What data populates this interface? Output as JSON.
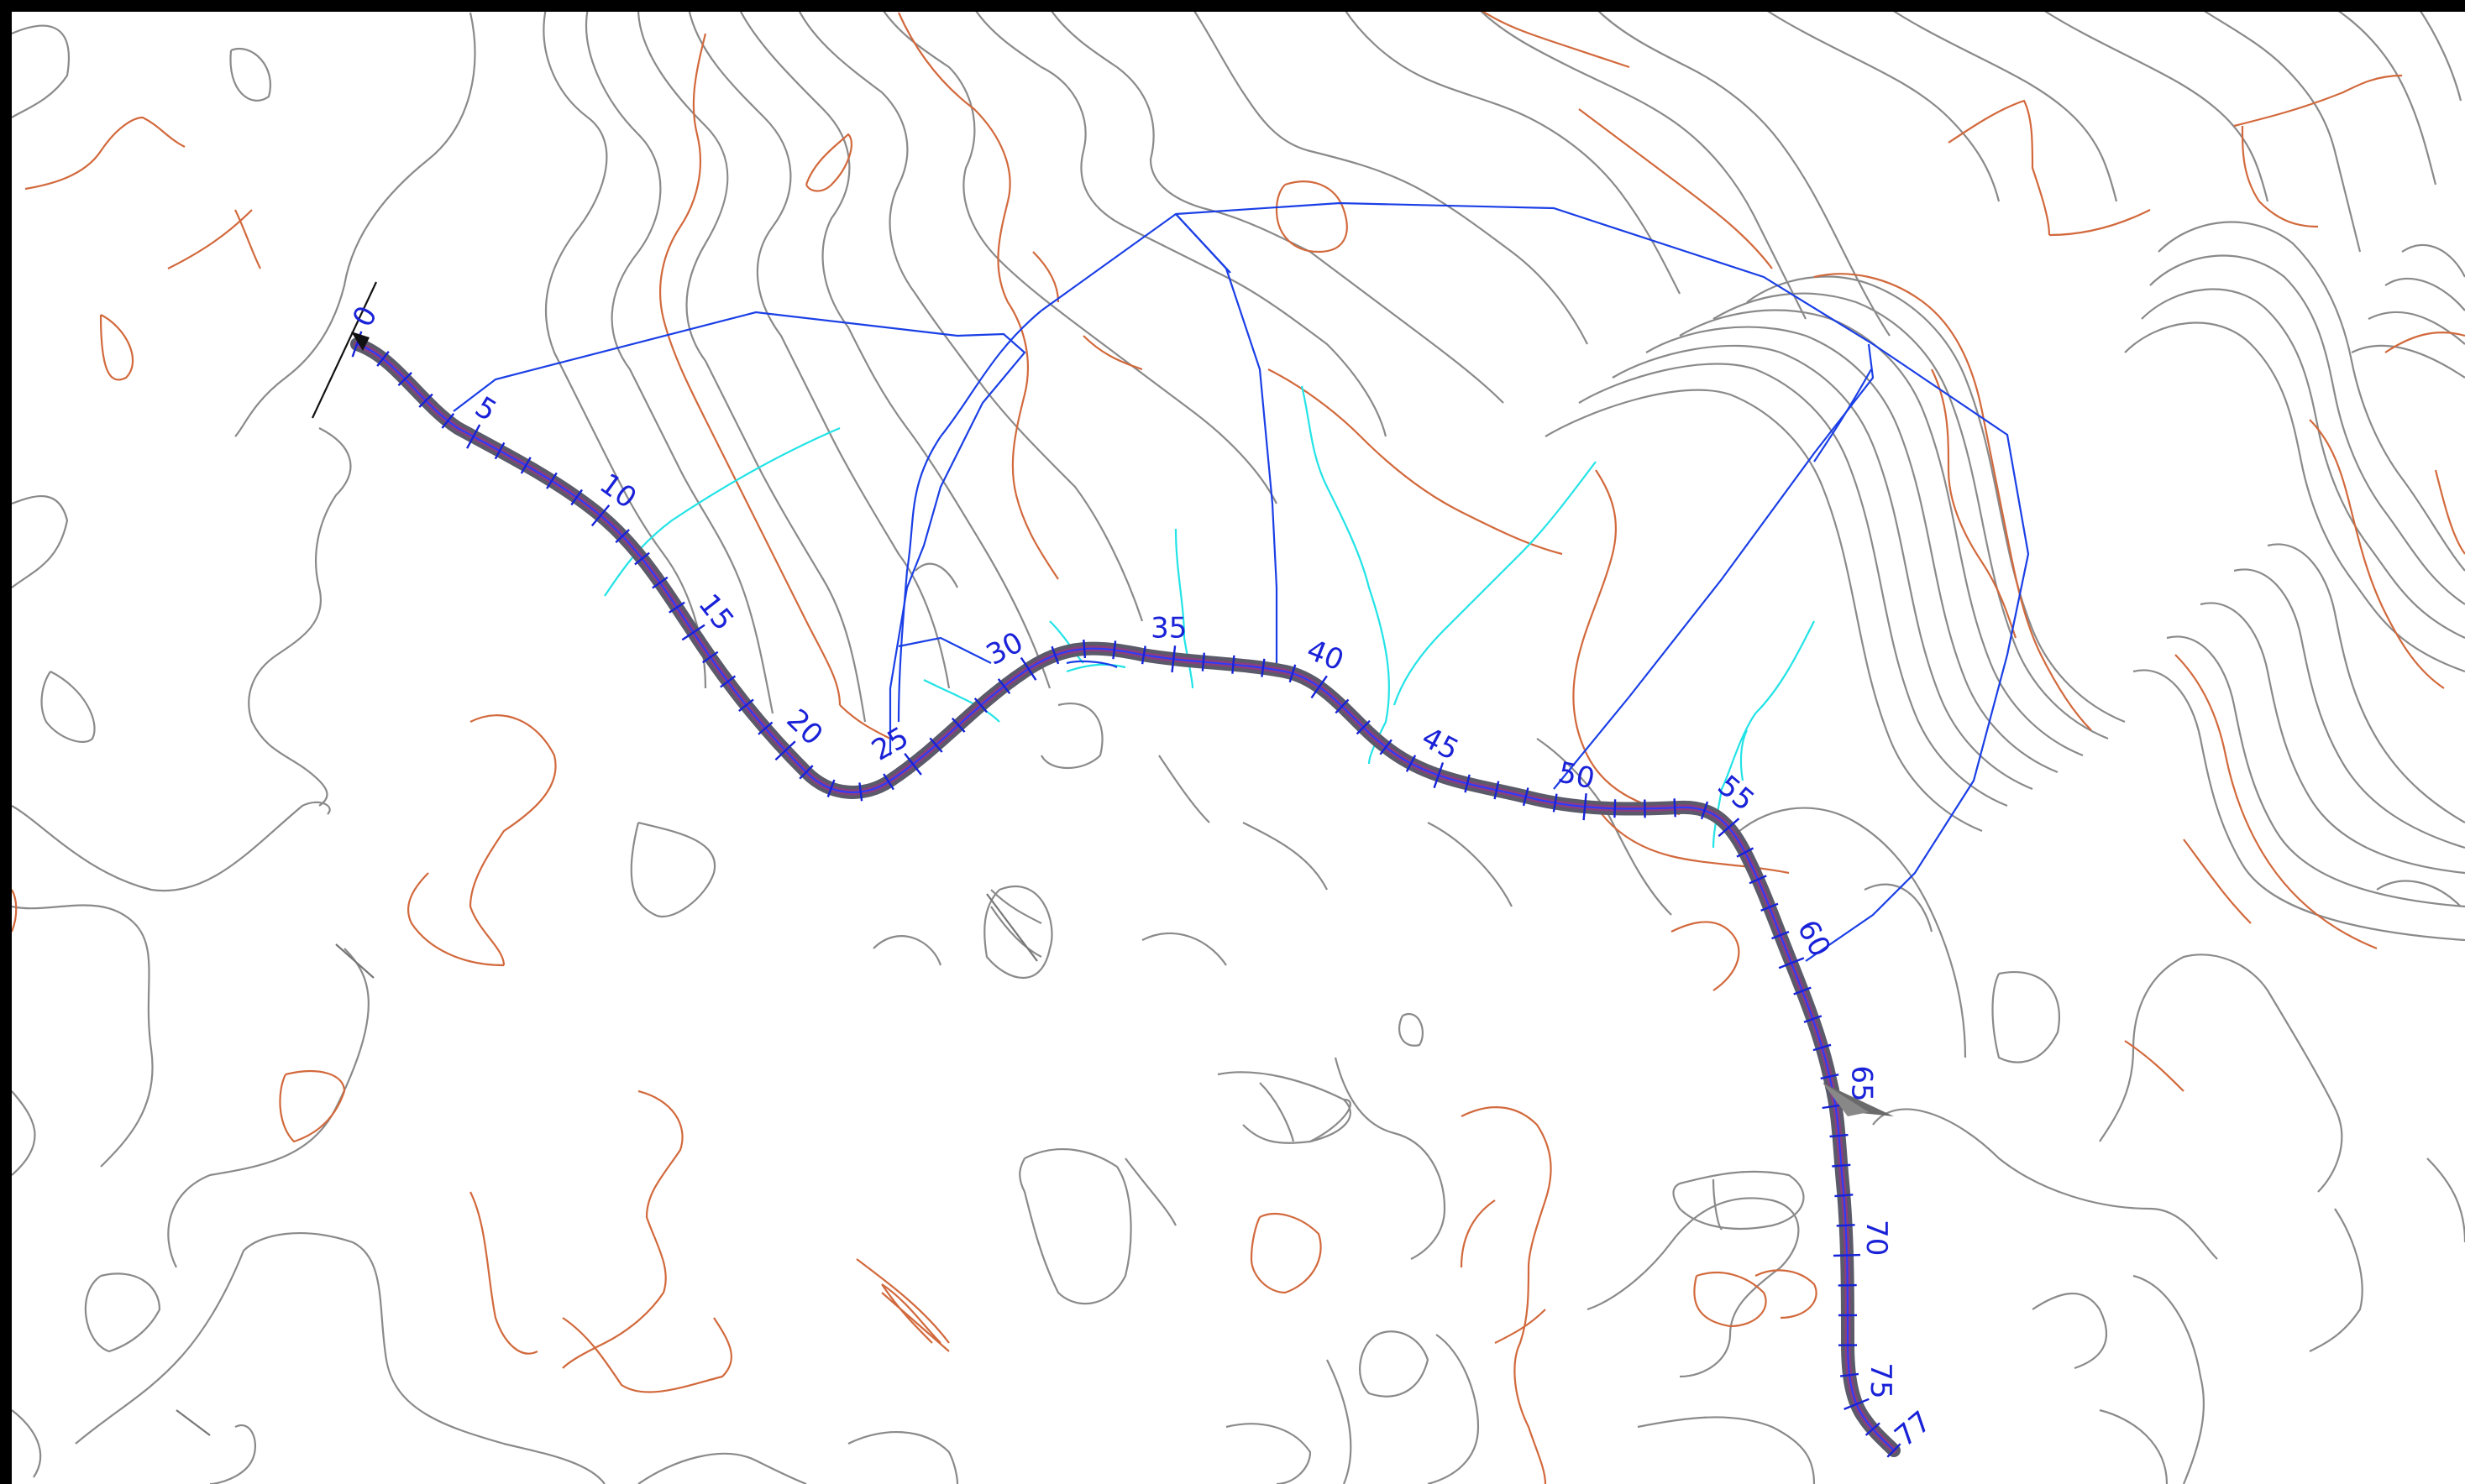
{
  "map": {
    "stations": [
      {
        "label": "0",
        "t": 0.0,
        "angle": -62
      },
      {
        "label": "5",
        "t": 0.064,
        "angle": 32
      },
      {
        "label": "10",
        "t": 0.129,
        "angle": 36
      },
      {
        "label": "15",
        "t": 0.193,
        "angle": 52
      },
      {
        "label": "20",
        "t": 0.258,
        "angle": 44
      },
      {
        "label": "25",
        "t": 0.322,
        "angle": -30
      },
      {
        "label": "30",
        "t": 0.386,
        "angle": -28
      },
      {
        "label": "35",
        "t": 0.451,
        "angle": 0
      },
      {
        "label": "40",
        "t": 0.515,
        "angle": 22
      },
      {
        "label": "45",
        "t": 0.58,
        "angle": 28
      },
      {
        "label": "50",
        "t": 0.644,
        "angle": 12
      },
      {
        "label": "55",
        "t": 0.708,
        "angle": 40
      },
      {
        "label": "60",
        "t": 0.773,
        "angle": 62
      },
      {
        "label": "65",
        "t": 0.837,
        "angle": 90
      },
      {
        "label": "70",
        "t": 0.902,
        "angle": 90
      },
      {
        "label": "75",
        "t": 0.966,
        "angle": 90
      },
      {
        "label": "77",
        "t": 1.0,
        "angle": -40
      }
    ],
    "colors": {
      "contour_minor": "#8a8a8a",
      "contour_major": "#d2693c",
      "stream": "#22e3e6",
      "catchment": "#1a3fe6",
      "route": "#8a3e7e",
      "station_text": "#1a22d8"
    },
    "icons": [
      "north-arrow-icon",
      "start-marker-icon"
    ]
  }
}
